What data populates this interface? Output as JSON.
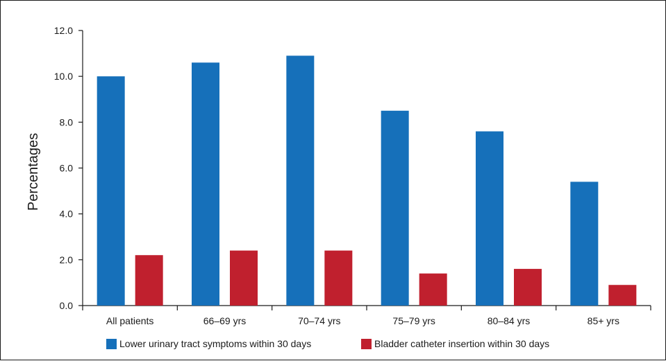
{
  "chart_data": {
    "type": "bar",
    "categories": [
      "All patients",
      "66–69 yrs",
      "70–74 yrs",
      "75–79 yrs",
      "80–84 yrs",
      "85+ yrs"
    ],
    "series": [
      {
        "name": "Lower urinary tract symptoms within 30 days",
        "color": "#1670ba",
        "values": [
          10.0,
          10.6,
          10.9,
          8.5,
          7.6,
          5.4
        ]
      },
      {
        "name": "Bladder catheter insertion within 30 days",
        "color": "#c0202e",
        "values": [
          2.2,
          2.4,
          2.4,
          1.4,
          1.6,
          0.9
        ]
      }
    ],
    "ylabel": "Percentages",
    "xlabel": "",
    "ylim": [
      0,
      12
    ],
    "yticks": [
      "0.0",
      "2.0",
      "4.0",
      "6.0",
      "8.0",
      "10.0",
      "12.0"
    ],
    "grid": false,
    "legend_position": "bottom"
  }
}
